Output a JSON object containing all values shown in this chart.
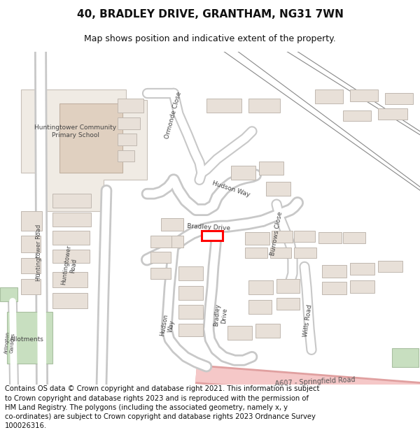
{
  "title_line1": "40, BRADLEY DRIVE, GRANTHAM, NG31 7WN",
  "title_line2": "Map shows position and indicative extent of the property.",
  "copyright_text": "Contains OS data © Crown copyright and database right 2021. This information is subject\nto Crown copyright and database rights 2023 and is reproduced with the permission of\nHM Land Registry. The polygons (including the associated geometry, namely x, y\nco-ordinates) are subject to Crown copyright and database rights 2023 Ordnance Survey\n100026316.",
  "bg_color": "#ffffff",
  "map_bg": "#f7f4f1",
  "road_outer": "#c8c8c8",
  "road_inner": "#ffffff",
  "building_fill": "#e8e0d8",
  "building_stroke": "#c0b8b0",
  "school_fill": "#e0d0c0",
  "school_stroke": "#c0b0a0",
  "highlight_color": "#ff0000",
  "green_fill": "#c8dfc0",
  "green_stroke": "#a8bfa0",
  "pink_road_fill": "#f0c0c0",
  "rail_color": "#888888",
  "title_fontsize": 11,
  "subtitle_fontsize": 9,
  "copyright_fontsize": 7.2,
  "label_color": "#444444",
  "label_fontsize": 6.5
}
